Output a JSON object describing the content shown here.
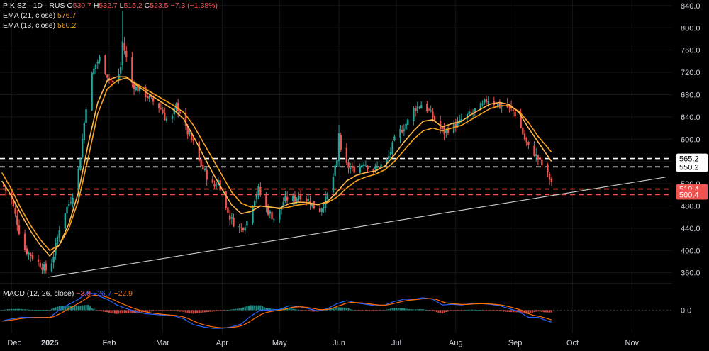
{
  "header": {
    "symbol_line": "PIK SZ · 1D · RUS",
    "open_label": "O",
    "open": "530.7",
    "high_label": "H",
    "high": "532.7",
    "low_label": "L",
    "low": "515.2",
    "close_label": "C",
    "close": "523.5",
    "change": "−7.3 (−1.38%)",
    "ema21_label": "EMA (21, close)",
    "ema21_value": "576.7",
    "ema13_label": "EMA (13, close)",
    "ema13_value": "560.2",
    "macd_label": "MACD (12, 26, close)",
    "macd_values": [
      "−3.8",
      "−26.7",
      "−22.9"
    ]
  },
  "colors": {
    "background": "#000000",
    "up": "#26a69a",
    "down": "#ef5350",
    "ema21": "#f7a21b",
    "ema13": "#ffb74d",
    "macd": "#2962ff",
    "signal": "#ff6d00",
    "white_level": "#ffffff",
    "red_level": "#ef5350"
  },
  "chart_data": {
    "type": "candlestick",
    "y_ticks": [
      "840.0",
      "800.0",
      "760.0",
      "720.0",
      "680.0",
      "640.0",
      "600.0",
      "560.0",
      "520.0",
      "480.0",
      "440.0",
      "400.0",
      "360.0"
    ],
    "y_tick_values": [
      840,
      800,
      760,
      720,
      680,
      640,
      600,
      560,
      520,
      480,
      440,
      400,
      360
    ],
    "ylim": [
      343,
      850
    ],
    "x_labels": [
      {
        "text": "Dec",
        "bold": false,
        "day": 0
      },
      {
        "text": "2025",
        "bold": true,
        "day": 20
      },
      {
        "text": "Feb",
        "bold": false,
        "day": 51
      },
      {
        "text": "Mar",
        "bold": false,
        "day": 79
      },
      {
        "text": "Apr",
        "bold": false,
        "day": 110
      },
      {
        "text": "May",
        "bold": false,
        "day": 140
      },
      {
        "text": "Jun",
        "bold": false,
        "day": 171
      },
      {
        "text": "Jul",
        "bold": false,
        "day": 201
      },
      {
        "text": "Aug",
        "bold": false,
        "day": 232
      },
      {
        "text": "Sep",
        "bold": false,
        "day": 263
      },
      {
        "text": "Oct",
        "bold": false,
        "day": 293
      },
      {
        "text": "Nov",
        "bold": false,
        "day": 324
      }
    ],
    "levels": [
      {
        "value": 565.2,
        "label": "565.2",
        "style": "white"
      },
      {
        "value": 550.2,
        "label": "550.2",
        "style": "white"
      },
      {
        "value": 510.4,
        "label": "510.4",
        "style": "red"
      },
      {
        "value": 500.4,
        "label": "500.4",
        "style": "red"
      }
    ],
    "trendline": [
      {
        "day": 19,
        "value": 352
      },
      {
        "day": 342,
        "value": 532
      }
    ],
    "close_series": [
      [
        -5,
        520
      ],
      [
        0,
        490
      ],
      [
        3,
        450
      ],
      [
        6,
        405
      ],
      [
        10,
        392
      ],
      [
        14,
        378
      ],
      [
        18,
        365
      ],
      [
        20,
        368
      ],
      [
        22,
        392
      ],
      [
        25,
        440
      ],
      [
        28,
        470
      ],
      [
        31,
        492
      ],
      [
        34,
        520
      ],
      [
        36,
        570
      ],
      [
        38,
        630
      ],
      [
        40,
        690
      ],
      [
        42,
        715
      ],
      [
        44,
        735
      ],
      [
        46,
        745
      ],
      [
        48,
        730
      ],
      [
        50,
        715
      ],
      [
        53,
        700
      ],
      [
        55,
        705
      ],
      [
        57,
        730
      ],
      [
        58,
        775
      ],
      [
        60,
        745
      ],
      [
        62,
        705
      ],
      [
        65,
        692
      ],
      [
        68,
        685
      ],
      [
        70,
        680
      ],
      [
        73,
        670
      ],
      [
        75,
        665
      ],
      [
        78,
        655
      ],
      [
        80,
        640
      ],
      [
        83,
        628
      ],
      [
        86,
        660
      ],
      [
        88,
        650
      ],
      [
        90,
        625
      ],
      [
        93,
        605
      ],
      [
        96,
        585
      ],
      [
        98,
        560
      ],
      [
        101,
        540
      ],
      [
        104,
        520
      ],
      [
        106,
        515
      ],
      [
        108,
        525
      ],
      [
        110,
        505
      ],
      [
        112,
        475
      ],
      [
        114,
        460
      ],
      [
        117,
        445
      ],
      [
        120,
        440
      ],
      [
        123,
        452
      ],
      [
        125,
        475
      ],
      [
        127,
        495
      ],
      [
        129,
        510
      ],
      [
        131,
        490
      ],
      [
        134,
        470
      ],
      [
        137,
        458
      ],
      [
        140,
        470
      ],
      [
        142,
        488
      ],
      [
        145,
        495
      ],
      [
        148,
        492
      ],
      [
        150,
        500
      ],
      [
        153,
        495
      ],
      [
        156,
        488
      ],
      [
        158,
        478
      ],
      [
        161,
        473
      ],
      [
        164,
        490
      ],
      [
        166,
        510
      ],
      [
        168,
        532
      ],
      [
        170,
        560
      ],
      [
        171,
        612
      ],
      [
        172,
        575
      ],
      [
        174,
        555
      ],
      [
        176,
        550
      ],
      [
        178,
        545
      ],
      [
        181,
        548
      ],
      [
        184,
        560
      ],
      [
        186,
        552
      ],
      [
        189,
        545
      ],
      [
        191,
        548
      ],
      [
        194,
        556
      ],
      [
        196,
        560
      ],
      [
        198,
        578
      ],
      [
        200,
        598
      ],
      [
        202,
        610
      ],
      [
        204,
        618
      ],
      [
        206,
        628
      ],
      [
        208,
        636
      ],
      [
        210,
        654
      ],
      [
        213,
        660
      ],
      [
        215,
        665
      ],
      [
        217,
        655
      ],
      [
        219,
        645
      ],
      [
        221,
        635
      ],
      [
        224,
        618
      ],
      [
        226,
        612
      ],
      [
        228,
        618
      ],
      [
        231,
        625
      ],
      [
        234,
        630
      ],
      [
        236,
        640
      ],
      [
        238,
        642
      ],
      [
        241,
        648
      ],
      [
        243,
        655
      ],
      [
        246,
        660
      ],
      [
        248,
        670
      ],
      [
        250,
        672
      ],
      [
        252,
        665
      ],
      [
        255,
        660
      ],
      [
        257,
        663
      ],
      [
        260,
        655
      ],
      [
        262,
        650
      ],
      [
        264,
        640
      ],
      [
        266,
        620
      ],
      [
        268,
        600
      ],
      [
        270,
        585
      ],
      [
        272,
        580
      ],
      [
        274,
        570
      ],
      [
        276,
        560
      ],
      [
        278,
        550
      ],
      [
        280,
        535
      ],
      [
        282,
        523.5
      ]
    ],
    "ema21": [
      [
        -5,
        540
      ],
      [
        0,
        510
      ],
      [
        5,
        475
      ],
      [
        10,
        445
      ],
      [
        15,
        420
      ],
      [
        20,
        400
      ],
      [
        25,
        410
      ],
      [
        30,
        440
      ],
      [
        35,
        490
      ],
      [
        40,
        565
      ],
      [
        45,
        645
      ],
      [
        50,
        690
      ],
      [
        55,
        705
      ],
      [
        60,
        710
      ],
      [
        65,
        700
      ],
      [
        70,
        690
      ],
      [
        75,
        680
      ],
      [
        80,
        670
      ],
      [
        85,
        660
      ],
      [
        90,
        648
      ],
      [
        95,
        625
      ],
      [
        100,
        595
      ],
      [
        105,
        565
      ],
      [
        110,
        535
      ],
      [
        115,
        505
      ],
      [
        120,
        485
      ],
      [
        125,
        478
      ],
      [
        130,
        480
      ],
      [
        135,
        478
      ],
      [
        140,
        475
      ],
      [
        145,
        478
      ],
      [
        150,
        482
      ],
      [
        155,
        484
      ],
      [
        160,
        483
      ],
      [
        165,
        486
      ],
      [
        170,
        496
      ],
      [
        175,
        512
      ],
      [
        180,
        525
      ],
      [
        185,
        532
      ],
      [
        190,
        537
      ],
      [
        195,
        545
      ],
      [
        200,
        560
      ],
      [
        205,
        580
      ],
      [
        210,
        600
      ],
      [
        215,
        615
      ],
      [
        220,
        620
      ],
      [
        225,
        615
      ],
      [
        230,
        620
      ],
      [
        235,
        625
      ],
      [
        240,
        635
      ],
      [
        245,
        645
      ],
      [
        250,
        655
      ],
      [
        255,
        660
      ],
      [
        260,
        660
      ],
      [
        265,
        650
      ],
      [
        270,
        630
      ],
      [
        275,
        605
      ],
      [
        280,
        585
      ],
      [
        282,
        576.7
      ]
    ],
    "ema13": [
      [
        -5,
        525
      ],
      [
        0,
        498
      ],
      [
        5,
        465
      ],
      [
        10,
        435
      ],
      [
        15,
        410
      ],
      [
        20,
        390
      ],
      [
        25,
        410
      ],
      [
        30,
        448
      ],
      [
        35,
        505
      ],
      [
        40,
        590
      ],
      [
        45,
        665
      ],
      [
        50,
        705
      ],
      [
        55,
        712
      ],
      [
        60,
        712
      ],
      [
        65,
        698
      ],
      [
        70,
        685
      ],
      [
        75,
        674
      ],
      [
        80,
        663
      ],
      [
        85,
        652
      ],
      [
        90,
        636
      ],
      [
        95,
        605
      ],
      [
        100,
        572
      ],
      [
        105,
        540
      ],
      [
        110,
        510
      ],
      [
        115,
        482
      ],
      [
        120,
        466
      ],
      [
        125,
        470
      ],
      [
        130,
        480
      ],
      [
        135,
        478
      ],
      [
        140,
        476
      ],
      [
        145,
        484
      ],
      [
        150,
        487
      ],
      [
        155,
        486
      ],
      [
        160,
        482
      ],
      [
        165,
        488
      ],
      [
        170,
        505
      ],
      [
        175,
        525
      ],
      [
        180,
        535
      ],
      [
        185,
        540
      ],
      [
        190,
        543
      ],
      [
        195,
        552
      ],
      [
        200,
        572
      ],
      [
        205,
        595
      ],
      [
        210,
        615
      ],
      [
        215,
        632
      ],
      [
        220,
        635
      ],
      [
        225,
        622
      ],
      [
        230,
        628
      ],
      [
        235,
        632
      ],
      [
        240,
        644
      ],
      [
        245,
        654
      ],
      [
        250,
        663
      ],
      [
        255,
        666
      ],
      [
        260,
        662
      ],
      [
        265,
        648
      ],
      [
        270,
        620
      ],
      [
        275,
        595
      ],
      [
        280,
        570
      ],
      [
        282,
        560.2
      ]
    ],
    "macd_zero_label": "0.0",
    "macd_ylim": [
      -35,
      38
    ]
  }
}
